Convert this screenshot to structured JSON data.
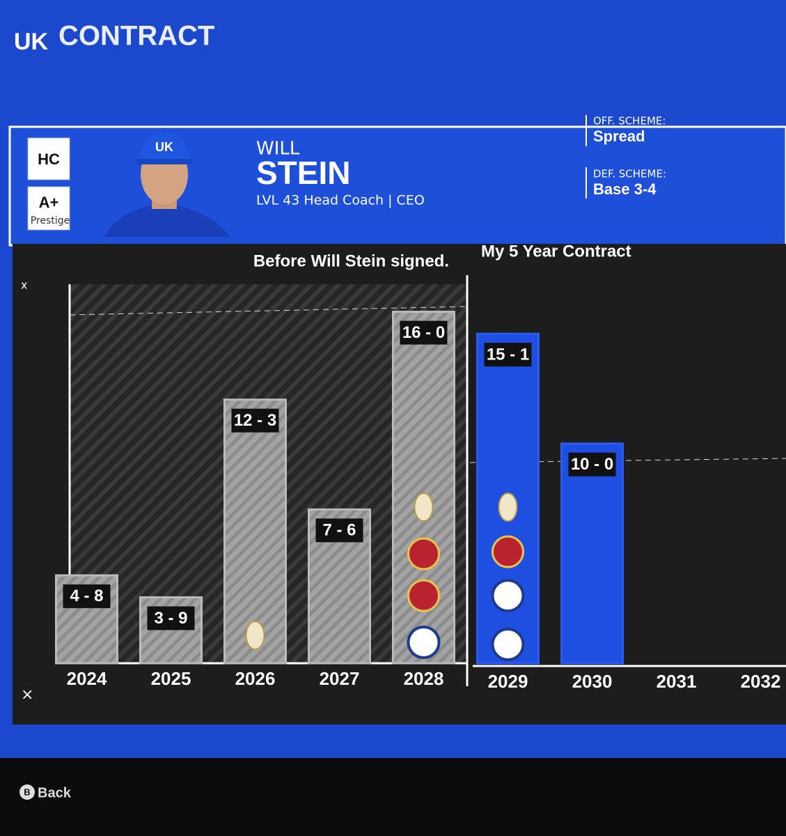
{
  "header": {
    "title": "CONTRACT"
  },
  "coach": {
    "position": "HC",
    "grade": "A+",
    "grade_label": "Prestige",
    "first_name": "WILL",
    "last_name": "STEIN",
    "description": "LVL 43 Head Coach | CEO",
    "off_scheme_label": "OFF. SCHEME:",
    "off_scheme": "Spread",
    "def_scheme_label": "DEF. SCHEME:",
    "def_scheme": "Base 3-4"
  },
  "chart_data": {
    "type": "bar",
    "categories": [
      "2024",
      "2025",
      "2026",
      "2027",
      "2028",
      "2029",
      "2030",
      "2031",
      "2032"
    ],
    "series": [
      {
        "name": "Before Will Stein signed.",
        "color": "#9a9a9a",
        "values": [
          4,
          3,
          12,
          7,
          16,
          null,
          null,
          null,
          null
        ],
        "value_labels": [
          "4 - 8",
          "3 - 9",
          "12 - 3",
          "7 - 6",
          "16 - 0",
          null,
          null,
          null,
          null
        ]
      },
      {
        "name": "My 5 Year Contract",
        "color": "#1f4fe0",
        "values": [
          null,
          null,
          null,
          null,
          null,
          15,
          10,
          null,
          null
        ],
        "value_labels": [
          null,
          null,
          null,
          null,
          null,
          "15 - 1",
          "10 - 0",
          null,
          null
        ]
      }
    ],
    "ylim": [
      0,
      17
    ]
  },
  "footer": {
    "button": "B",
    "action": "Back"
  }
}
